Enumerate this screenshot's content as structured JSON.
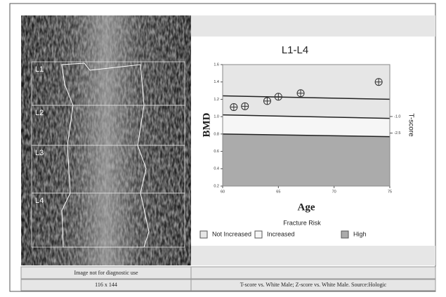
{
  "chart_data": {
    "type": "scatter",
    "title": "L1-L4",
    "x_label": "Age",
    "y_label": "BMD",
    "y2_label": "T-score",
    "x": [
      61,
      62,
      64,
      65,
      67,
      74
    ],
    "values": [
      1.11,
      1.12,
      1.18,
      1.23,
      1.27,
      1.4
    ],
    "color": "#333333",
    "xlim": [
      60,
      75
    ],
    "xticks": [
      60,
      65,
      70,
      75
    ],
    "ylim": [
      0.2,
      1.6
    ],
    "yticks": [
      0.2,
      0.4,
      0.6,
      0.8,
      {
        "value": 1,
        "label": "1.0"
      },
      1.2,
      1.4,
      1.6
    ],
    "y2lim": [
      -7.3,
      3.7
    ],
    "y2ticks": [
      {
        "value": -1,
        "label": "-1.0"
      },
      {
        "value": -2.5,
        "label": "-2.5"
      }
    ],
    "reference_lines": [
      {
        "x": [
          60,
          75
        ],
        "values": [
          1.24,
          1.2
        ]
      },
      {
        "x": [
          60,
          75
        ],
        "values": [
          1.02,
          0.98
        ]
      },
      {
        "x": [
          60,
          75
        ],
        "values": [
          0.8,
          0.77
        ]
      }
    ],
    "legend": {
      "title": "Fracture Risk",
      "items": [
        {
          "label": "Not Increased",
          "color": "#e6e6e6"
        },
        {
          "label": "Increased",
          "color": "#f6f6f6"
        },
        {
          "label": "High",
          "color": "#ababab"
        }
      ]
    }
  },
  "image_panel": {
    "vertebrae": [
      "L1",
      "L2",
      "L3",
      "L4"
    ],
    "note": "Image not for diagnostic use",
    "size": "116 x 144"
  },
  "footer_note": "T-score vs. White Male; Z-score vs. White Male. Source:Hologic"
}
